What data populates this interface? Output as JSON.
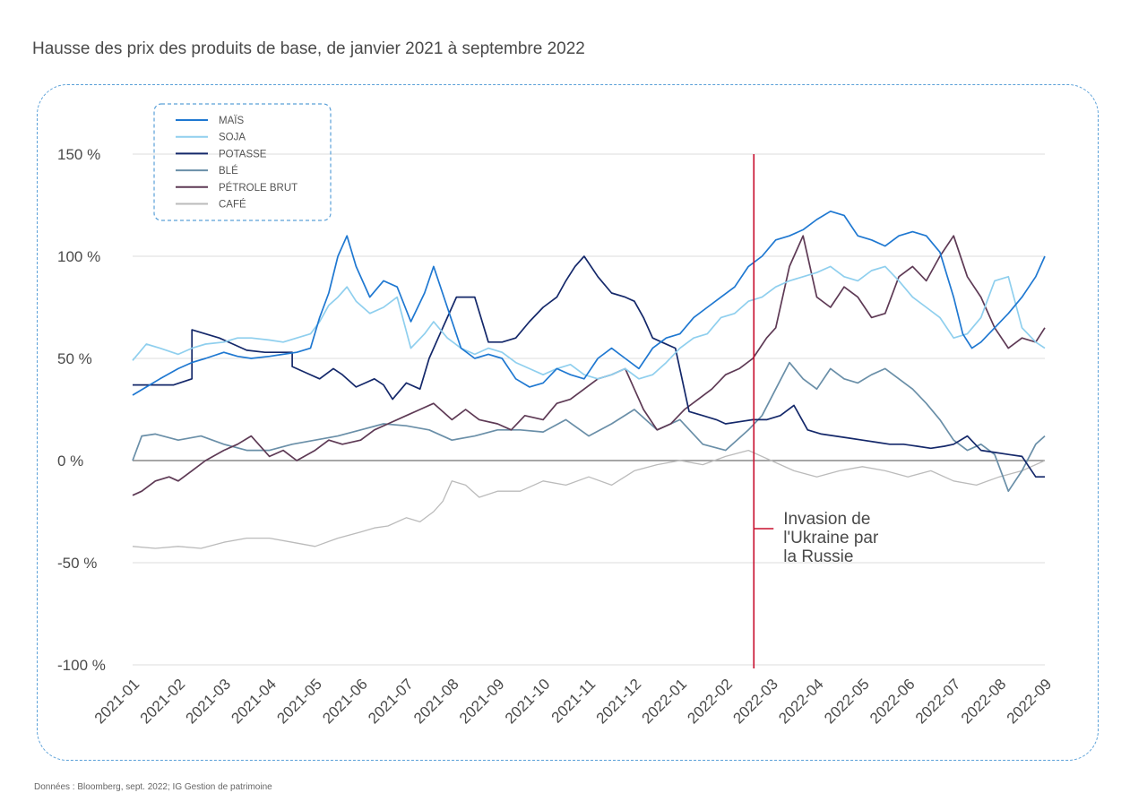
{
  "page": {
    "title": "Hausse des prix des produits de base, de janvier 2021 à septembre 2022",
    "source": "Données : Bloomberg, sept. 2022; IG Gestion de patrimoine"
  },
  "chart_data": {
    "type": "line",
    "title": "Hausse des prix des produits de base, de janvier 2021 à septembre 2022",
    "xlabel": "",
    "ylabel": "",
    "ylim": [
      -100,
      150
    ],
    "yticks": [
      150,
      100,
      50,
      0,
      -50,
      -100
    ],
    "ytick_labels": [
      "150 %",
      "100 %",
      "50 %",
      "0 %",
      "-50 %",
      "-100 %"
    ],
    "x_ticks": [
      "2021-01",
      "2021-02",
      "2021-03",
      "2021-04",
      "2021-05",
      "2021-06",
      "2021-07",
      "2021-08",
      "2021-09",
      "2021-10",
      "2021-11",
      "2021-12",
      "2022-01",
      "2022-02",
      "2022-03",
      "2022-04",
      "2022-05",
      "2022-06",
      "2022-07",
      "2022-08",
      "2022-09"
    ],
    "xlim": [
      0,
      20
    ],
    "grid": "horizontal",
    "legend_position": "top-left",
    "annotation": {
      "x": 13.62,
      "lines": [
        "Invasion de",
        "l'Ukraine par",
        "la Russie"
      ],
      "color": "#c8102e"
    },
    "series": [
      {
        "name": "MAÏS",
        "color": "#1f78d1",
        "x": [
          0,
          0.3,
          0.6,
          1,
          1.3,
          1.6,
          2,
          2.3,
          2.6,
          3,
          3.3,
          3.6,
          3.9,
          4.1,
          4.3,
          4.5,
          4.7,
          4.9,
          5.2,
          5.5,
          5.8,
          6.1,
          6.4,
          6.6,
          6.9,
          7.2,
          7.5,
          7.8,
          8.1,
          8.4,
          8.7,
          9,
          9.3,
          9.6,
          9.9,
          10.2,
          10.5,
          10.8,
          11.1,
          11.4,
          11.7,
          12,
          12.3,
          12.6,
          12.9,
          13.2,
          13.5,
          13.8,
          14.1,
          14.4,
          14.7,
          15,
          15.3,
          15.6,
          15.9,
          16.2,
          16.5,
          16.8,
          17.1,
          17.4,
          17.7,
          18,
          18.2,
          18.4,
          18.6,
          18.9,
          19.2,
          19.5,
          19.8,
          20
        ],
        "y": [
          32,
          36,
          40,
          45,
          48,
          50,
          53,
          51,
          50,
          51,
          52,
          53,
          55,
          70,
          82,
          100,
          110,
          95,
          80,
          88,
          85,
          68,
          82,
          95,
          75,
          55,
          50,
          52,
          50,
          40,
          36,
          38,
          45,
          42,
          40,
          50,
          55,
          50,
          45,
          55,
          60,
          62,
          70,
          75,
          80,
          85,
          95,
          100,
          108,
          110,
          113,
          118,
          122,
          120,
          110,
          108,
          105,
          110,
          112,
          110,
          102,
          80,
          62,
          55,
          58,
          65,
          72,
          80,
          90,
          100
        ]
      },
      {
        "name": "SOJA",
        "color": "#8fcfee",
        "x": [
          0,
          0.3,
          0.6,
          1,
          1.3,
          1.6,
          2,
          2.3,
          2.6,
          3,
          3.3,
          3.6,
          3.9,
          4.1,
          4.3,
          4.5,
          4.7,
          4.9,
          5.2,
          5.5,
          5.8,
          6.1,
          6.4,
          6.6,
          6.9,
          7.2,
          7.5,
          7.8,
          8.1,
          8.4,
          8.7,
          9,
          9.3,
          9.6,
          9.9,
          10.2,
          10.5,
          10.8,
          11.1,
          11.4,
          11.7,
          12,
          12.3,
          12.6,
          12.9,
          13.2,
          13.5,
          13.8,
          14.1,
          14.4,
          14.7,
          15,
          15.3,
          15.6,
          15.9,
          16.2,
          16.5,
          16.8,
          17.1,
          17.4,
          17.7,
          18,
          18.3,
          18.6,
          18.9,
          19.2,
          19.5,
          19.8,
          20
        ],
        "y": [
          49,
          57,
          55,
          52,
          55,
          57,
          58,
          60,
          60,
          59,
          58,
          60,
          62,
          68,
          76,
          80,
          85,
          78,
          72,
          75,
          80,
          55,
          62,
          68,
          60,
          55,
          52,
          55,
          53,
          48,
          45,
          42,
          45,
          47,
          42,
          40,
          42,
          45,
          40,
          42,
          48,
          55,
          60,
          62,
          70,
          72,
          78,
          80,
          85,
          88,
          90,
          92,
          95,
          90,
          88,
          93,
          95,
          88,
          80,
          75,
          70,
          60,
          62,
          70,
          88,
          90,
          65,
          58,
          55
        ]
      },
      {
        "name": "POTASSE",
        "color": "#14286a",
        "x": [
          0,
          0.9,
          1.3,
          1.3,
          1.9,
          2.2,
          2.5,
          2.9,
          3.3,
          3.5,
          3.5,
          3.8,
          4.1,
          4.4,
          4.6,
          4.9,
          5.1,
          5.3,
          5.5,
          5.7,
          6,
          6.3,
          6.5,
          6.7,
          6.9,
          7.1,
          7.3,
          7.5,
          7.8,
          8.1,
          8.4,
          8.7,
          9,
          9.3,
          9.5,
          9.7,
          9.9,
          10.2,
          10.5,
          10.8,
          11,
          11.2,
          11.4,
          11.6,
          11.9,
          12.2,
          12.5,
          12.8,
          13,
          13.3,
          13.6,
          13.9,
          14.2,
          14.5,
          14.8,
          15.1,
          15.4,
          15.7,
          16,
          16.3,
          16.6,
          16.9,
          17.2,
          17.5,
          17.8,
          18,
          18.3,
          18.6,
          18.9,
          19.2,
          19.5,
          19.8,
          20
        ],
        "y": [
          37,
          37,
          40,
          64,
          60,
          57,
          54,
          53,
          53,
          53,
          46,
          43,
          40,
          45,
          42,
          36,
          38,
          40,
          37,
          30,
          38,
          35,
          50,
          60,
          70,
          80,
          80,
          80,
          58,
          58,
          60,
          68,
          75,
          80,
          88,
          95,
          100,
          90,
          82,
          80,
          78,
          70,
          60,
          58,
          55,
          24,
          22,
          20,
          18,
          19,
          20,
          20,
          22,
          27,
          15,
          13,
          12,
          11,
          10,
          9,
          8,
          8,
          7,
          6,
          7,
          8,
          12,
          5,
          4,
          3,
          2,
          -8,
          -8
        ]
      },
      {
        "name": "BLÉ",
        "color": "#6a8fa8",
        "x": [
          0,
          0.2,
          0.5,
          1,
          1.5,
          2,
          2.5,
          3,
          3.5,
          4,
          4.5,
          5,
          5.5,
          6,
          6.5,
          7,
          7.5,
          8,
          8.5,
          9,
          9.5,
          10,
          10.5,
          11,
          11.5,
          12,
          12.5,
          13,
          13.5,
          13.8,
          14.1,
          14.4,
          14.7,
          15,
          15.3,
          15.6,
          15.9,
          16.2,
          16.5,
          16.8,
          17.1,
          17.4,
          17.7,
          18,
          18.3,
          18.6,
          18.9,
          19.2,
          19.5,
          19.8,
          20
        ],
        "y": [
          0,
          12,
          13,
          10,
          12,
          8,
          5,
          5,
          8,
          10,
          12,
          15,
          18,
          17,
          15,
          10,
          12,
          15,
          15,
          14,
          20,
          12,
          18,
          25,
          15,
          20,
          8,
          5,
          15,
          22,
          35,
          48,
          40,
          35,
          45,
          40,
          38,
          42,
          45,
          40,
          35,
          28,
          20,
          10,
          5,
          8,
          3,
          -15,
          -5,
          8,
          12
        ]
      },
      {
        "name": "PÉTROLE BRUT",
        "color": "#5e3a55",
        "x": [
          0,
          0.2,
          0.5,
          0.8,
          1,
          1.3,
          1.6,
          2,
          2.3,
          2.6,
          3,
          3.3,
          3.6,
          4,
          4.3,
          4.6,
          5,
          5.3,
          5.6,
          6,
          6.3,
          6.6,
          7,
          7.3,
          7.6,
          8,
          8.3,
          8.6,
          9,
          9.3,
          9.6,
          9.9,
          10.2,
          10.5,
          10.8,
          11,
          11.2,
          11.5,
          11.8,
          12.1,
          12.4,
          12.7,
          13,
          13.3,
          13.6,
          13.9,
          14.1,
          14.4,
          14.7,
          15,
          15.3,
          15.6,
          15.9,
          16.2,
          16.5,
          16.8,
          17.1,
          17.4,
          17.7,
          18,
          18.3,
          18.6,
          18.9,
          19.2,
          19.5,
          19.8,
          20
        ],
        "y": [
          -17,
          -15,
          -10,
          -8,
          -10,
          -5,
          0,
          5,
          8,
          12,
          2,
          5,
          0,
          5,
          10,
          8,
          10,
          15,
          18,
          22,
          25,
          28,
          20,
          25,
          20,
          18,
          15,
          22,
          20,
          28,
          30,
          35,
          40,
          42,
          45,
          35,
          25,
          15,
          18,
          25,
          30,
          35,
          42,
          45,
          50,
          60,
          65,
          95,
          110,
          80,
          75,
          85,
          80,
          70,
          72,
          90,
          95,
          88,
          100,
          110,
          90,
          80,
          65,
          55,
          60,
          58,
          65
        ]
      },
      {
        "name": "CAFÉ",
        "color": "#bbbbbb",
        "x": [
          0,
          0.5,
          1,
          1.5,
          2,
          2.5,
          3,
          3.5,
          4,
          4.5,
          5,
          5.3,
          5.6,
          6,
          6.3,
          6.6,
          6.8,
          7,
          7.3,
          7.6,
          8,
          8.5,
          9,
          9.5,
          10,
          10.5,
          11,
          11.5,
          12,
          12.5,
          13,
          13.5,
          14,
          14.5,
          15,
          15.5,
          16,
          16.5,
          17,
          17.5,
          18,
          18.5,
          19,
          19.5,
          20
        ],
        "y": [
          -42,
          -43,
          -42,
          -43,
          -40,
          -38,
          -38,
          -40,
          -42,
          -38,
          -35,
          -33,
          -32,
          -28,
          -30,
          -25,
          -20,
          -10,
          -12,
          -18,
          -15,
          -15,
          -10,
          -12,
          -8,
          -12,
          -5,
          -2,
          0,
          -2,
          2,
          5,
          0,
          -5,
          -8,
          -5,
          -3,
          -5,
          -8,
          -5,
          -10,
          -12,
          -8,
          -5,
          0
        ]
      }
    ]
  }
}
